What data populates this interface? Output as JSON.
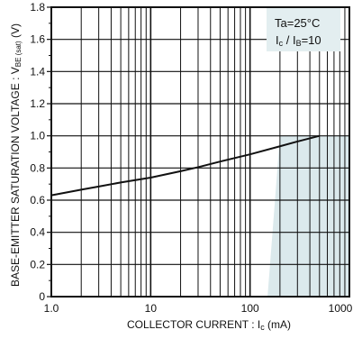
{
  "chart_data": {
    "type": "line",
    "xscale": "log",
    "xlim": [
      1,
      1000
    ],
    "ylim": [
      0,
      1.8
    ],
    "xlabel": "COLLECTOR CURRENT : Ic (mA)",
    "ylabel": "BASE-EMITTER SATURATION VOLTAGE : VBE (sat) (V)",
    "ylabel_parts": {
      "pre": "BASE-EMITTER SATURATION VOLTAGE : V",
      "sub": "BE (sat)",
      "post": " (V)"
    },
    "xlabel_parts": {
      "pre": "COLLECTOR CURRENT : I",
      "sub": "c",
      "post": " (mA)"
    },
    "x_ticks": [
      "1.0",
      "10",
      "100",
      "1000"
    ],
    "x_tick_values": [
      1,
      10,
      100,
      1000
    ],
    "y_ticks": [
      "0",
      "0.2",
      "0.4",
      "0.6",
      "0.8",
      "1.0",
      "1.2",
      "1.4",
      "1.6",
      "1.8"
    ],
    "y_tick_values": [
      0,
      0.2,
      0.4,
      0.6,
      0.8,
      1.0,
      1.2,
      1.4,
      1.6,
      1.8
    ],
    "grid": true,
    "legend": {
      "position": "top-right",
      "line1": "Ta=25°C",
      "line2_parts": {
        "a": "I",
        "a_sub": "c",
        "mid": " / I",
        "b_sub": "B",
        "end": "=10"
      }
    },
    "series": [
      {
        "x": [
          1,
          2,
          3,
          5,
          10,
          20,
          30,
          50,
          100,
          200,
          300,
          500
        ],
        "y": [
          0.63,
          0.665,
          0.685,
          0.71,
          0.74,
          0.78,
          0.805,
          0.84,
          0.885,
          0.935,
          0.965,
          1.0
        ]
      }
    ],
    "colors": {
      "line": "#111111",
      "grid": "#111111",
      "legend_bg": "#e3eef0",
      "shade": "#dbe9ec"
    }
  }
}
